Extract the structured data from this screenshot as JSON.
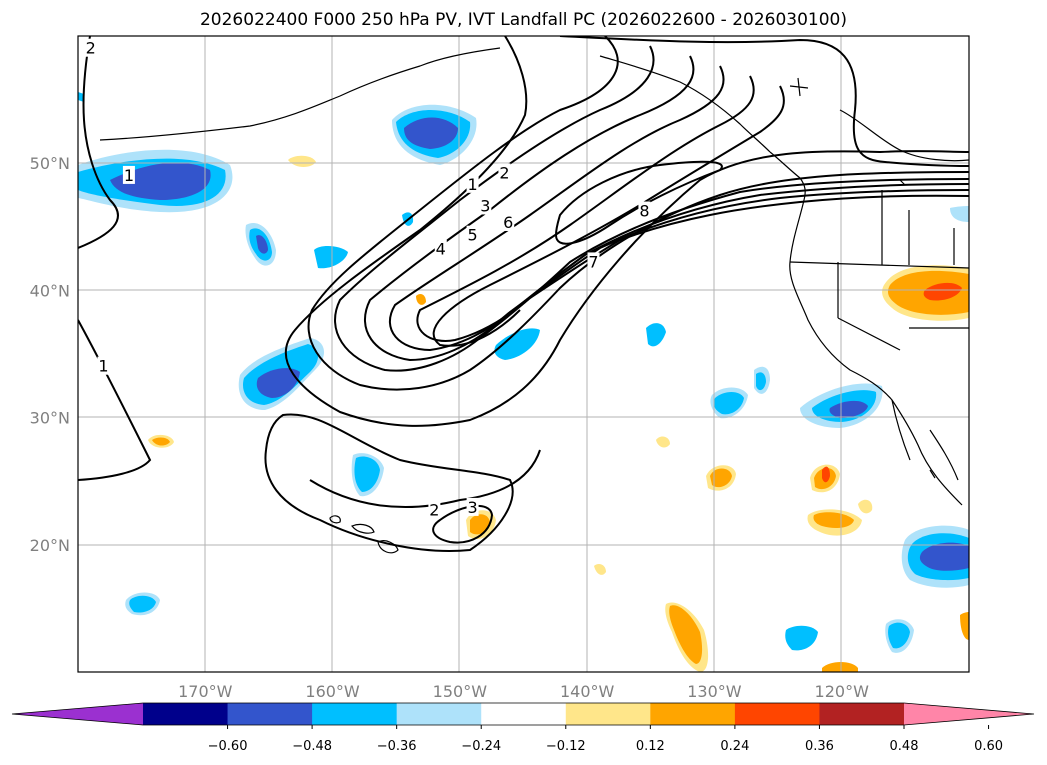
{
  "title": "2026022400 F000 250 hPa PV, IVT Landfall PC (2026022600 - 2026030100)",
  "map": {
    "lon_range": [
      -180,
      -110
    ],
    "lat_range": [
      10,
      60
    ],
    "lon_ticks": [
      {
        "value": -170,
        "label": "170°W"
      },
      {
        "value": -160,
        "label": "160°W"
      },
      {
        "value": -150,
        "label": "150°W"
      },
      {
        "value": -140,
        "label": "140°W"
      },
      {
        "value": -130,
        "label": "130°W"
      },
      {
        "value": -120,
        "label": "120°W"
      }
    ],
    "lat_ticks": [
      {
        "value": 20,
        "label": "20°N"
      },
      {
        "value": 30,
        "label": "30°N"
      },
      {
        "value": 40,
        "label": "40°N"
      },
      {
        "value": 50,
        "label": "50°N"
      }
    ],
    "contour_labels": [
      {
        "text": "2",
        "lon": -179,
        "lat": 59
      },
      {
        "text": "1",
        "lon": -176,
        "lat": 49
      },
      {
        "text": "1",
        "lon": -178,
        "lat": 34
      },
      {
        "text": "1",
        "lon": -149,
        "lat": 48.3
      },
      {
        "text": "2",
        "lon": -146.5,
        "lat": 49.2
      },
      {
        "text": "3",
        "lon": -148,
        "lat": 46.6
      },
      {
        "text": "4",
        "lon": -151.5,
        "lat": 43.2
      },
      {
        "text": "5",
        "lon": -149,
        "lat": 44.3
      },
      {
        "text": "6",
        "lon": -146.2,
        "lat": 45.3
      },
      {
        "text": "7",
        "lon": -139.5,
        "lat": 42.2
      },
      {
        "text": "8",
        "lon": -135.5,
        "lat": 46.2
      },
      {
        "text": "2",
        "lon": -152,
        "lat": 22.7
      },
      {
        "text": "3",
        "lon": -149,
        "lat": 22.9
      }
    ]
  },
  "colorbar": {
    "colors": [
      "#9b30d0",
      "#00008b",
      "#3355cc",
      "#00bfff",
      "#aee2fa",
      "#ffffff",
      "#ffe68a",
      "#ffa500",
      "#ff4500",
      "#b22222",
      "#ff85a8"
    ],
    "tick_labels": [
      "−0.60",
      "−0.48",
      "−0.36",
      "−0.24",
      "−0.12",
      "0.12",
      "0.24",
      "0.36",
      "0.48",
      "0.60"
    ]
  },
  "legend_colors": {
    "light_blue": "#aee2fa",
    "cyan": "#00bfff",
    "blue": "#3355cc",
    "light_yellow": "#ffe68a",
    "orange": "#ffa500",
    "red": "#ff4500"
  }
}
